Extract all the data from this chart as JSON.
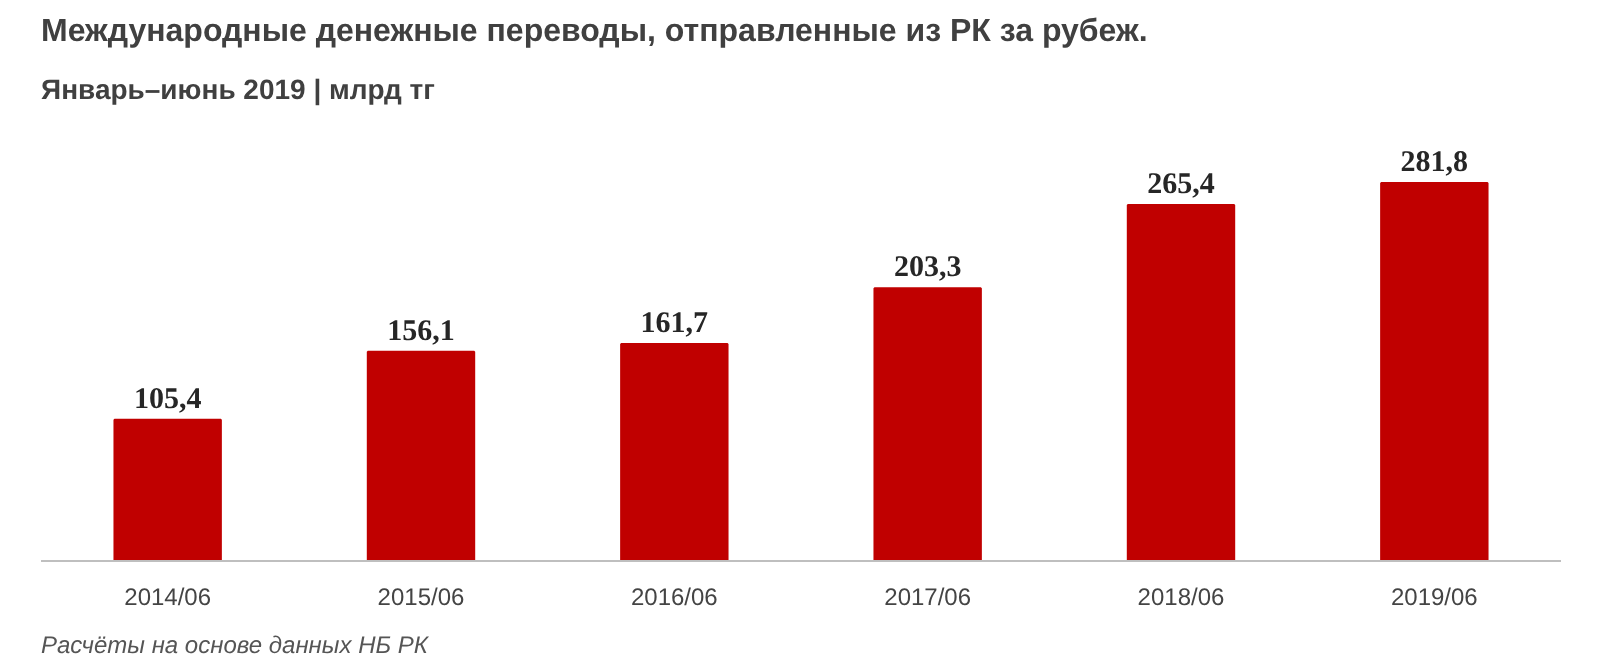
{
  "chart_data": {
    "type": "bar",
    "title": "Международные денежные переводы, отправленные из РК за рубеж.",
    "subtitle": "Январь–июнь 2019  | млрд тг",
    "categories": [
      "2014/06",
      "2015/06",
      "2016/06",
      "2017/06",
      "2018/06",
      "2019/06"
    ],
    "values": [
      105.4,
      156.1,
      161.7,
      203.3,
      265.4,
      281.8
    ],
    "value_labels": [
      "105,4",
      "156,1",
      "161,7",
      "203,3",
      "265,4",
      "281,8"
    ],
    "color": "#c00000",
    "annotations": [
      "Расчёты на основе данных  НБ РК"
    ]
  }
}
